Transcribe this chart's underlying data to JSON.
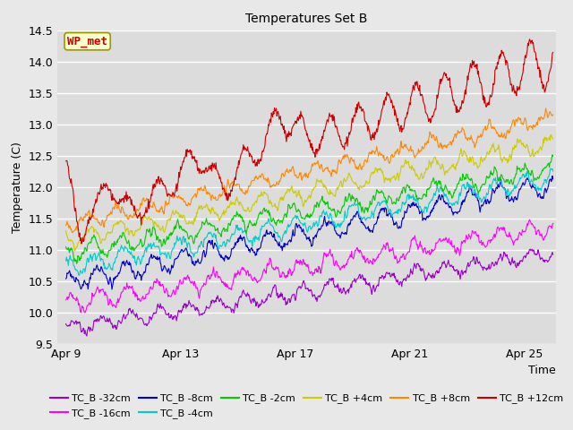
{
  "title": "Temperatures Set B",
  "xlabel": "Time",
  "ylabel": "Temperature (C)",
  "ylim": [
    9.5,
    14.5
  ],
  "xtick_labels": [
    "Apr 9",
    "Apr 13",
    "Apr 17",
    "Apr 21",
    "Apr 25"
  ],
  "xtick_days": [
    0,
    4,
    8,
    12,
    16
  ],
  "background_color": "#dcdcdc",
  "fig_facecolor": "#e8e8e8",
  "series": [
    {
      "label": "TC_B -32cm",
      "color": "#9900cc",
      "base_start": 9.75,
      "base_end": 10.95,
      "amp": 0.1,
      "phase": 0.0
    },
    {
      "label": "TC_B -16cm",
      "color": "#ff00ff",
      "base_start": 10.15,
      "base_end": 11.35,
      "amp": 0.12,
      "phase": 0.5
    },
    {
      "label": "TC_B -8cm",
      "color": "#0000cc",
      "base_start": 10.48,
      "base_end": 12.05,
      "amp": 0.14,
      "phase": 1.0
    },
    {
      "label": "TC_B -4cm",
      "color": "#00cccc",
      "base_start": 10.72,
      "base_end": 12.15,
      "amp": 0.13,
      "phase": 1.5
    },
    {
      "label": "TC_B -2cm",
      "color": "#00cc00",
      "base_start": 10.95,
      "base_end": 12.3,
      "amp": 0.12,
      "phase": 2.0
    },
    {
      "label": "TC_B +4cm",
      "color": "#cccc00",
      "base_start": 11.15,
      "base_end": 12.7,
      "amp": 0.11,
      "phase": 2.5
    },
    {
      "label": "TC_B +8cm",
      "color": "#ff8800",
      "base_start": 11.4,
      "base_end": 13.1,
      "amp": 0.1,
      "phase": 3.0
    },
    {
      "label": "TC_B +12cm",
      "color": "#cc0000",
      "base_start": 11.45,
      "base_end": 14.05,
      "amp": 0.4,
      "phase": 0.2
    }
  ],
  "wp_met_label": "WP_met",
  "wp_met_color": "#cc0000",
  "wp_met_bg": "#ffffcc",
  "wp_met_border": "#999900",
  "n_days": 17,
  "pts_per_day": 48
}
